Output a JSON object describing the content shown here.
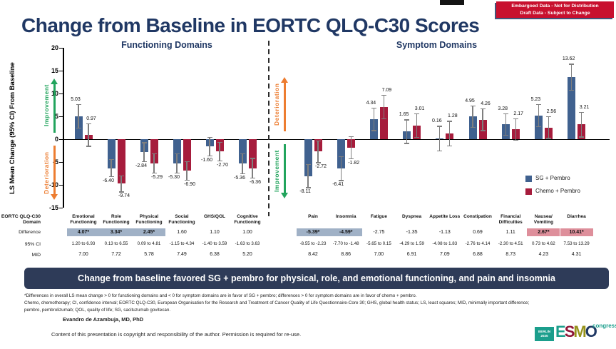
{
  "slide": {
    "title": "Change from Baseline in EORTC QLQ-C30 Scores",
    "badge": {
      "line1": "Embargoed Data - Not for Distribution",
      "line2": "Draft Data - Subject to Change"
    },
    "banner": "Change from baseline favored SG + pembro for physical, role, and emotional functioning, and pain and insomnia",
    "footnotes": [
      "*Differences in overall LS mean change > 0 for functioning domains and < 0 for symptom domains are in favor of SG + pembro; differences > 0 for symptom domains are in favor of chemo + pembro.",
      "Chemo, chemotherapy; CI, confidence interval; EORTC QLQ-C30, European Organisation for the Research and Treatment of Cancer Quality of Life Questionnaire-Core 30; GHS, global health status; LS, least squares; MID, minimally important difference;",
      "pembro, pembrolizumab; QOL, quality of life; SG, sacituzumab govitecan."
    ],
    "author": "Evandro de Azambuja, MD, PhD",
    "copyright": "Content of this presentation is copyright and responsibility of the author. Permission is required for re-use.",
    "logo": {
      "venue_line1": "BERLIN",
      "venue_line2": "2025",
      "letters": [
        "E",
        "S",
        "M",
        "O"
      ],
      "congress": "congress"
    }
  },
  "arrows": {
    "improvement": "Improvement",
    "deterioration": "Deterioration"
  },
  "legend": [
    {
      "key": "sg",
      "label": "SG + Pembro"
    },
    {
      "key": "chemo",
      "label": "Chemo + Pembro"
    }
  ],
  "table": {
    "row_labels": {
      "domain_line1": "EORTC QLQ-C30",
      "domain_line2": "Domain",
      "difference": "Difference",
      "ci": "95% CI",
      "mid": "MID"
    }
  },
  "colors": {
    "sg": "#40618F",
    "chemo": "#A61C3C",
    "highlight_blue": "#A0B1C6",
    "highlight_pink": "#DE8F9B",
    "title_navy": "#203864",
    "banner_navy": "#2E3B58",
    "badge_red": "#C8102E",
    "green": "#22A45D",
    "orange": "#ED7D31",
    "logo_teal": "#1B9E8C",
    "logo_crimson": "#8E1537",
    "logo_olive": "#97931C",
    "logo_navy": "#1F3864"
  },
  "chart_data": {
    "type": "bar",
    "title": "Change from Baseline in EORTC QLQ-C30 Scores",
    "ylabel": "LS Mean Change (95% CI) From Baseline",
    "ylim": [
      -15,
      20
    ],
    "yticks": [
      20,
      15,
      10,
      5,
      0,
      -5,
      -10,
      -15
    ],
    "grid": false,
    "legend_position": "right",
    "series_names": [
      "SG + Pembro",
      "Chemo + Pembro"
    ],
    "sections": [
      {
        "label": "Functioning Domains",
        "domains": [
          {
            "name": "Emotional Functioning",
            "sg": 5.03,
            "sg_ci": [
              2.4,
              7.7
            ],
            "chemo": 0.97,
            "chemo_ci": [
              -1.6,
              3.5
            ],
            "difference": "4.07*",
            "diff_highlight": "blue",
            "ci95": "1.20 to 6.93",
            "mid": "7.00"
          },
          {
            "name": "Role Functioning",
            "sg": -6.4,
            "sg_ci": [
              -8.3,
              -4.4
            ],
            "chemo": -9.74,
            "chemo_ci": [
              -11.6,
              -7.9
            ],
            "difference": "3.34*",
            "diff_highlight": "blue",
            "ci95": "0.13 to 6.55",
            "mid": "7.72"
          },
          {
            "name": "Physical Functioning",
            "sg": -2.84,
            "sg_ci": [
              -5.0,
              -0.7
            ],
            "chemo": -5.29,
            "chemo_ci": [
              -7.5,
              -3.1
            ],
            "difference": "2.45*",
            "diff_highlight": "blue",
            "ci95": "0.09 to 4.81",
            "mid": "5.78"
          },
          {
            "name": "Social Functioning",
            "sg": -5.3,
            "sg_ci": [
              -7.5,
              -3.1
            ],
            "chemo": -6.9,
            "chemo_ci": [
              -9.0,
              -4.8
            ],
            "difference": "1.60",
            "diff_highlight": null,
            "ci95": "-1.15 to 4.34",
            "mid": "7.49"
          },
          {
            "name": "GHS/QOL",
            "sg": -1.6,
            "sg_ci": [
              -3.7,
              0.5
            ],
            "chemo": -2.7,
            "chemo_ci": [
              -4.8,
              -0.6
            ],
            "difference": "1.10",
            "diff_highlight": null,
            "ci95": "-1.40 to 3.59",
            "mid": "6.38"
          },
          {
            "name": "Cognitive Functioning",
            "sg": -5.36,
            "sg_ci": [
              -7.6,
              -3.1
            ],
            "chemo": -6.36,
            "chemo_ci": [
              -8.6,
              -4.1
            ],
            "difference": "1.00",
            "diff_highlight": null,
            "ci95": "-1.63 to 3.63",
            "mid": "5.20"
          }
        ]
      },
      {
        "label": "Symptom Domains",
        "domains": [
          {
            "name": "Pain",
            "sg": -8.11,
            "sg_ci": [
              -10.7,
              -5.5
            ],
            "chemo": -2.72,
            "chemo_ci": [
              -5.2,
              -0.3
            ],
            "difference": "-5.39*",
            "diff_highlight": "blue",
            "ci95": "-8.55 to -2.23",
            "mid": "8.42"
          },
          {
            "name": "Insomnia",
            "sg": -6.41,
            "sg_ci": [
              -9.1,
              -3.7
            ],
            "chemo": -1.82,
            "chemo_ci": [
              -4.4,
              0.7
            ],
            "difference": "-4.59*",
            "diff_highlight": "blue",
            "ci95": "-7.70 to -1.48",
            "mid": "8.86"
          },
          {
            "name": "Fatigue",
            "sg": 4.34,
            "sg_ci": [
              1.8,
              6.9
            ],
            "chemo": 7.09,
            "chemo_ci": [
              4.4,
              9.7
            ],
            "difference": "-2.75",
            "diff_highlight": null,
            "ci95": "-5.65 to 0.15",
            "mid": "7.00"
          },
          {
            "name": "Dyspnea",
            "sg": 1.65,
            "sg_ci": [
              -1.0,
              4.3
            ],
            "chemo": 3.01,
            "chemo_ci": [
              0.3,
              5.7
            ],
            "difference": "-1.35",
            "diff_highlight": null,
            "ci95": "-4.29 to 1.59",
            "mid": "6.91"
          },
          {
            "name": "Appetite Loss",
            "sg": 0.16,
            "sg_ci": [
              -2.6,
              2.9
            ],
            "chemo": 1.28,
            "chemo_ci": [
              -1.5,
              4.0
            ],
            "difference": "-1.13",
            "diff_highlight": null,
            "ci95": "-4.08 to 1.83",
            "mid": "7.09"
          },
          {
            "name": "Constipation",
            "sg": 4.95,
            "sg_ci": [
              2.5,
              7.4
            ],
            "chemo": 4.26,
            "chemo_ci": [
              1.8,
              6.7
            ],
            "difference": "0.69",
            "diff_highlight": null,
            "ci95": "-2.76 to 4.14",
            "mid": "6.88"
          },
          {
            "name": "Financial Difficulties",
            "sg": 3.28,
            "sg_ci": [
              0.8,
              5.7
            ],
            "chemo": 2.17,
            "chemo_ci": [
              -0.3,
              4.6
            ],
            "difference": "1.11",
            "diff_highlight": null,
            "ci95": "-2.30 to 4.51",
            "mid": "8.73"
          },
          {
            "name": "Nausea/ Vomiting",
            "sg": 5.23,
            "sg_ci": [
              2.7,
              7.7
            ],
            "chemo": 2.56,
            "chemo_ci": [
              0.1,
              5.0
            ],
            "difference": "2.67*",
            "diff_highlight": "pink",
            "ci95": "0.73 to 4.62",
            "mid": "4.23"
          },
          {
            "name": "Diarrhea",
            "sg": 13.62,
            "sg_ci": [
              10.7,
              16.5
            ],
            "chemo": 3.21,
            "chemo_ci": [
              0.4,
              6.0
            ],
            "difference": "10.41*",
            "diff_highlight": "pink",
            "ci95": "7.53 to 13.29",
            "mid": "4.31"
          }
        ]
      }
    ]
  }
}
